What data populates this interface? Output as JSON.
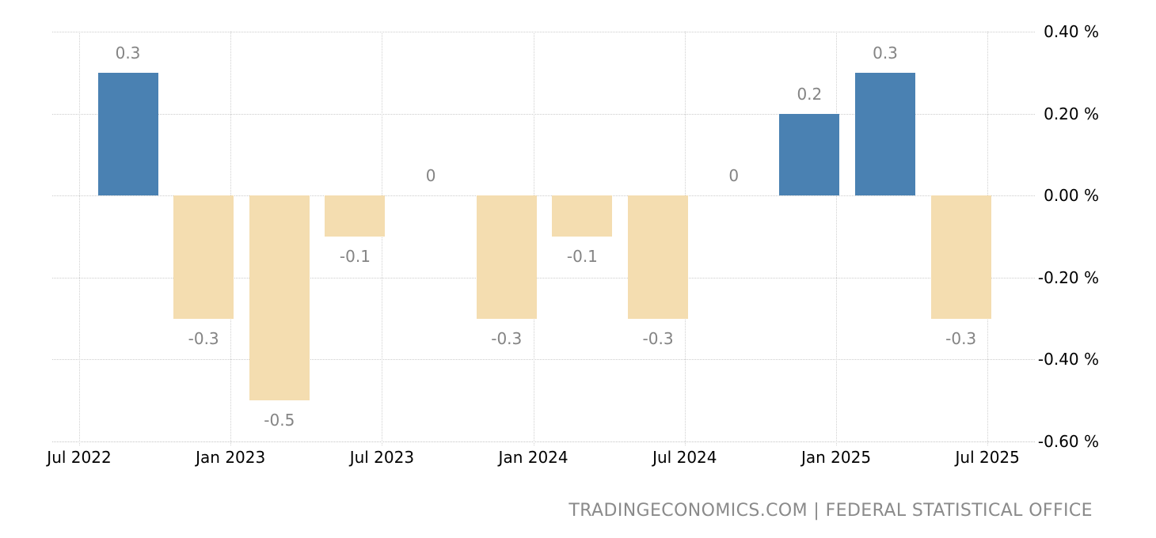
{
  "chart_data": {
    "type": "bar",
    "title": "",
    "categories": [
      "Q3 2022",
      "Q4 2022",
      "Q1 2023",
      "Q2 2023",
      "Q3 2023",
      "Q4 2023",
      "Q1 2024",
      "Q2 2024",
      "Q3 2024",
      "Q4 2024",
      "Q1 2025",
      "Q2 2025"
    ],
    "values": [
      0.3,
      -0.3,
      -0.5,
      -0.1,
      0,
      -0.3,
      -0.1,
      -0.3,
      0,
      0.2,
      0.3,
      -0.3
    ],
    "bar_labels": [
      "0.3",
      "-0.3",
      "-0.5",
      "-0.1",
      "0",
      "-0.3",
      "-0.1",
      "-0.3",
      "0",
      "0.2",
      "0.3",
      "-0.3"
    ],
    "x_tick_labels": [
      "Jul 2022",
      "Jan 2023",
      "Jul 2023",
      "Jan 2024",
      "Jul 2024",
      "Jan 2025",
      "Jul 2025"
    ],
    "y_tick_labels": [
      "0.40 %",
      "0.20 %",
      "0.00 %",
      "-0.20 %",
      "-0.40 %",
      "-0.60 %"
    ],
    "y_ticks": [
      0.4,
      0.2,
      0,
      -0.2,
      -0.4,
      -0.6
    ],
    "ylim": [
      -0.6,
      0.4
    ],
    "xlabel": "",
    "ylabel": "",
    "grid": true,
    "legend": "none",
    "colors": {
      "positive_bar": "#4a81b2",
      "negative_bar": "#f4ddb0",
      "gridline": "#cccccc",
      "data_label": "#848484",
      "axis_label": "#000000",
      "attribution": "#8a8a8a",
      "background": "#ffffff"
    }
  },
  "attribution": {
    "text": "TRADINGECONOMICS.COM | FEDERAL STATISTICAL OFFICE"
  }
}
